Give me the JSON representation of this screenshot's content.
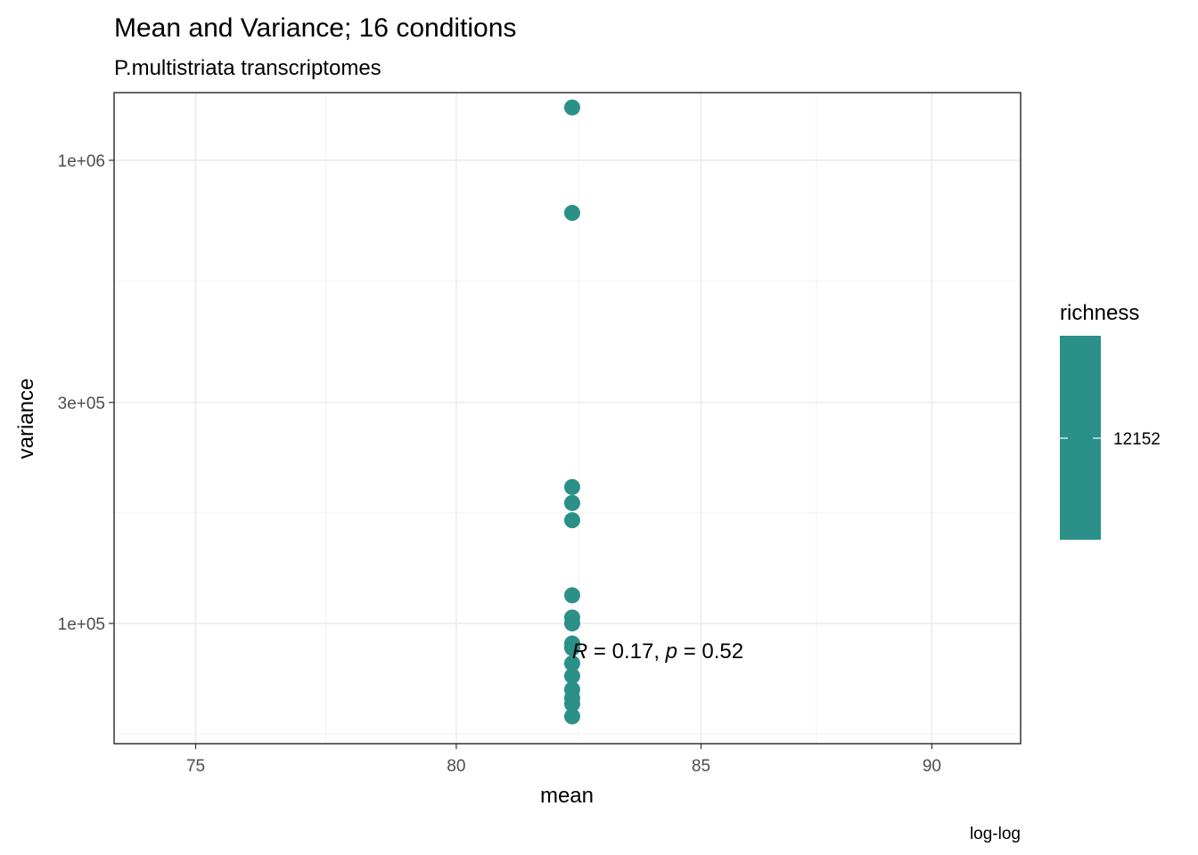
{
  "chart_data": {
    "type": "scatter",
    "title": "Mean and Variance; 16 conditions",
    "subtitle": "P.multistriata transcriptomes",
    "xlabel": "mean",
    "ylabel": "variance",
    "caption": "log-log",
    "x_scale": "log",
    "y_scale": "log",
    "xlim": [
      73.5,
      92
    ],
    "ylim": [
      55000,
      1400000
    ],
    "x_ticks": [
      75,
      80,
      85,
      90
    ],
    "x_tick_labels": [
      "75",
      "80",
      "85",
      "90"
    ],
    "y_ticks": [
      100000,
      300000,
      1000000
    ],
    "y_tick_labels": [
      "1e+05",
      "3e+05",
      "1e+06"
    ],
    "grid": true,
    "point_color": "#2a9088",
    "points": [
      {
        "x": 82.33,
        "y": 1300000
      },
      {
        "x": 82.33,
        "y": 770000
      },
      {
        "x": 82.33,
        "y": 197000
      },
      {
        "x": 82.33,
        "y": 182000
      },
      {
        "x": 82.33,
        "y": 167000
      },
      {
        "x": 82.33,
        "y": 115000
      },
      {
        "x": 82.33,
        "y": 103000
      },
      {
        "x": 82.33,
        "y": 100000
      },
      {
        "x": 82.33,
        "y": 90500
      },
      {
        "x": 82.33,
        "y": 88500
      },
      {
        "x": 82.33,
        "y": 82000
      },
      {
        "x": 82.33,
        "y": 77000
      },
      {
        "x": 82.33,
        "y": 72000
      },
      {
        "x": 82.33,
        "y": 69000
      },
      {
        "x": 82.33,
        "y": 67000
      },
      {
        "x": 82.33,
        "y": 63000
      }
    ],
    "annotation": {
      "r_symbol": "R",
      "r_text": " = 0.17, ",
      "p_symbol": "p",
      "p_text": " = 0.52",
      "x": 82.33,
      "y": 83000
    },
    "legend": {
      "title": "richness",
      "label": "12152",
      "color": "#2a9088",
      "placement": "right"
    }
  }
}
